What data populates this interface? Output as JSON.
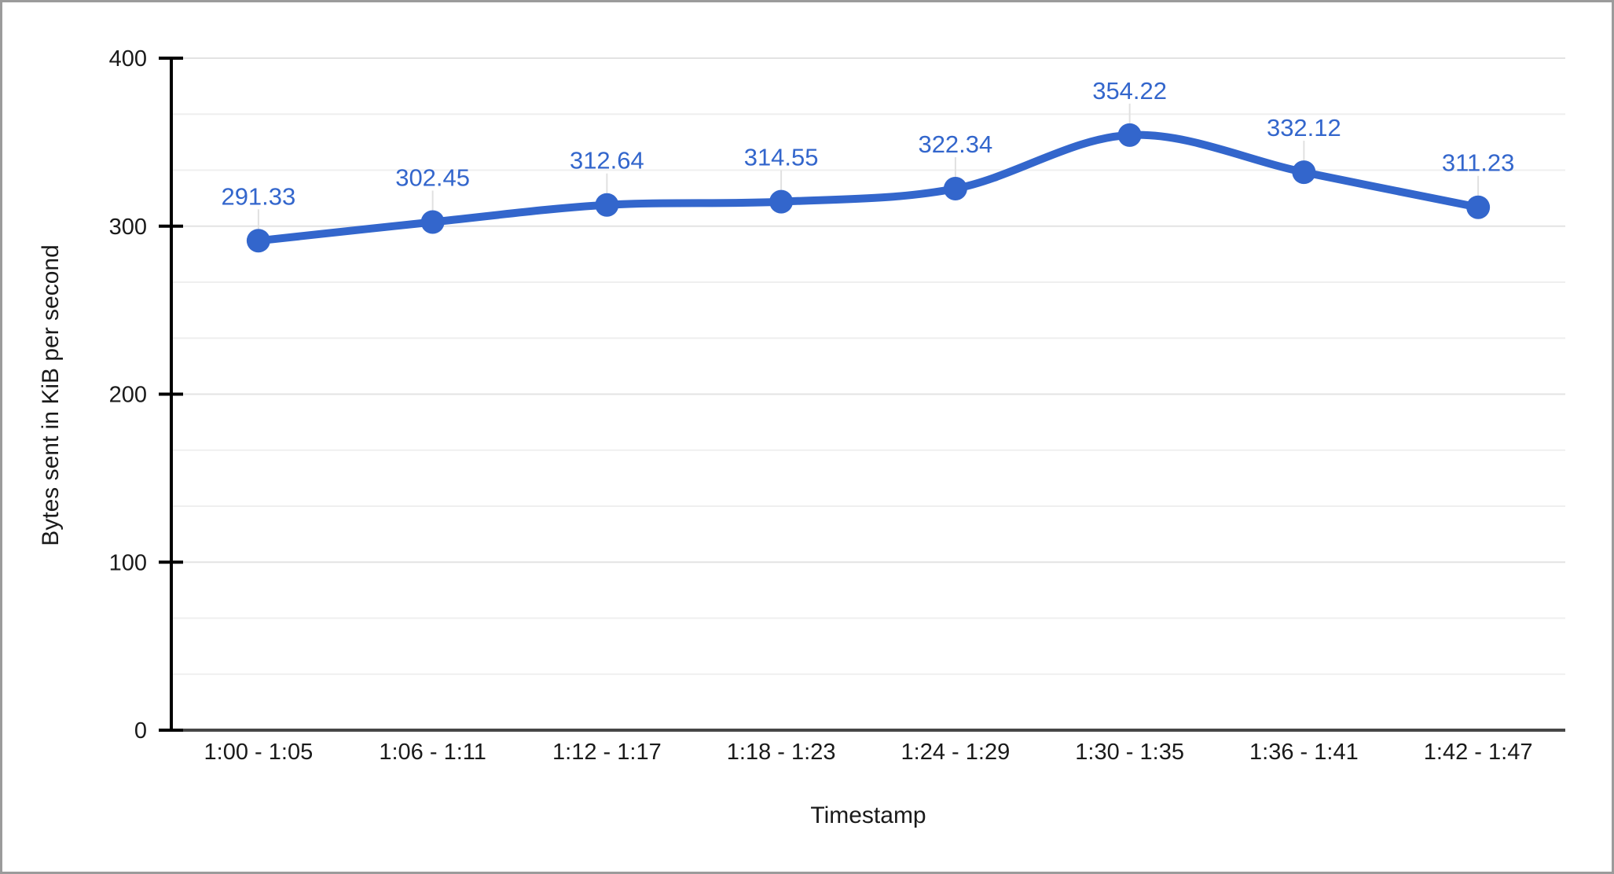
{
  "window": {
    "background": "#ffffff",
    "border_color": "#9b9b9b"
  },
  "chart_data": {
    "type": "line",
    "curve": "smooth",
    "title": "",
    "xlabel": "Timestamp",
    "ylabel": "Bytes sent in KiB per second",
    "categories": [
      "1:00 - 1:05",
      "1:06 - 1:11",
      "1:12 - 1:17",
      "1:18 - 1:23",
      "1:24 - 1:29",
      "1:30 - 1:35",
      "1:36 - 1:41",
      "1:42 - 1:47"
    ],
    "values": [
      291.33,
      302.45,
      312.64,
      314.55,
      322.34,
      354.22,
      332.12,
      311.23
    ],
    "data_labels": [
      "291.33",
      "302.45",
      "312.64",
      "314.55",
      "322.34",
      "354.22",
      "332.12",
      "311.23"
    ],
    "ylim": [
      0,
      400
    ],
    "yticks": [
      0,
      100,
      200,
      300,
      400
    ],
    "minor_gridlines_between_majors": 2,
    "grid": true,
    "legend": "none",
    "colors": {
      "series": "#3366cc",
      "data_label": "#3366cc",
      "annotation_stem": "#e0e0e0",
      "major_gridline": "#e3e3e3",
      "minor_gridline": "#efefef",
      "axis_line": "#000000",
      "baseline": "#474747",
      "tick_text": "#1a1a1a",
      "axis_title_text": "#1a1a1a"
    }
  }
}
